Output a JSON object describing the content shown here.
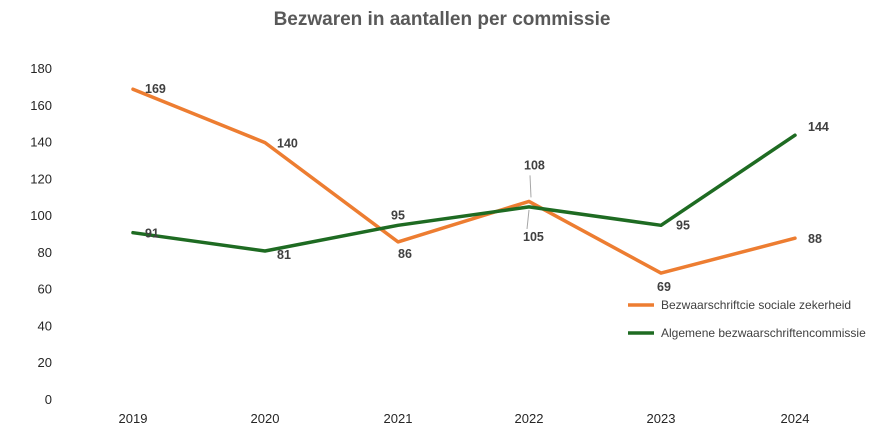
{
  "chart_data": {
    "type": "line",
    "title": "Bezwaren in aantallen per commissie",
    "xlabel": "",
    "ylabel": "",
    "categories": [
      "2019",
      "2020",
      "2021",
      "2022",
      "2023",
      "2024"
    ],
    "ylim": [
      0,
      180
    ],
    "yticks": [
      0,
      20,
      40,
      60,
      80,
      100,
      120,
      140,
      160,
      180
    ],
    "grid": false,
    "legend_position": "right",
    "series": [
      {
        "name": "Bezwaarschriftcie sociale zekerheid",
        "color": "#ED7D31",
        "values": [
          169,
          140,
          86,
          108,
          69,
          88
        ]
      },
      {
        "name": "Algemene bezwaarschriftencommissie",
        "color": "#1E6B22",
        "values": [
          91,
          81,
          95,
          105,
          95,
          144
        ]
      }
    ]
  }
}
